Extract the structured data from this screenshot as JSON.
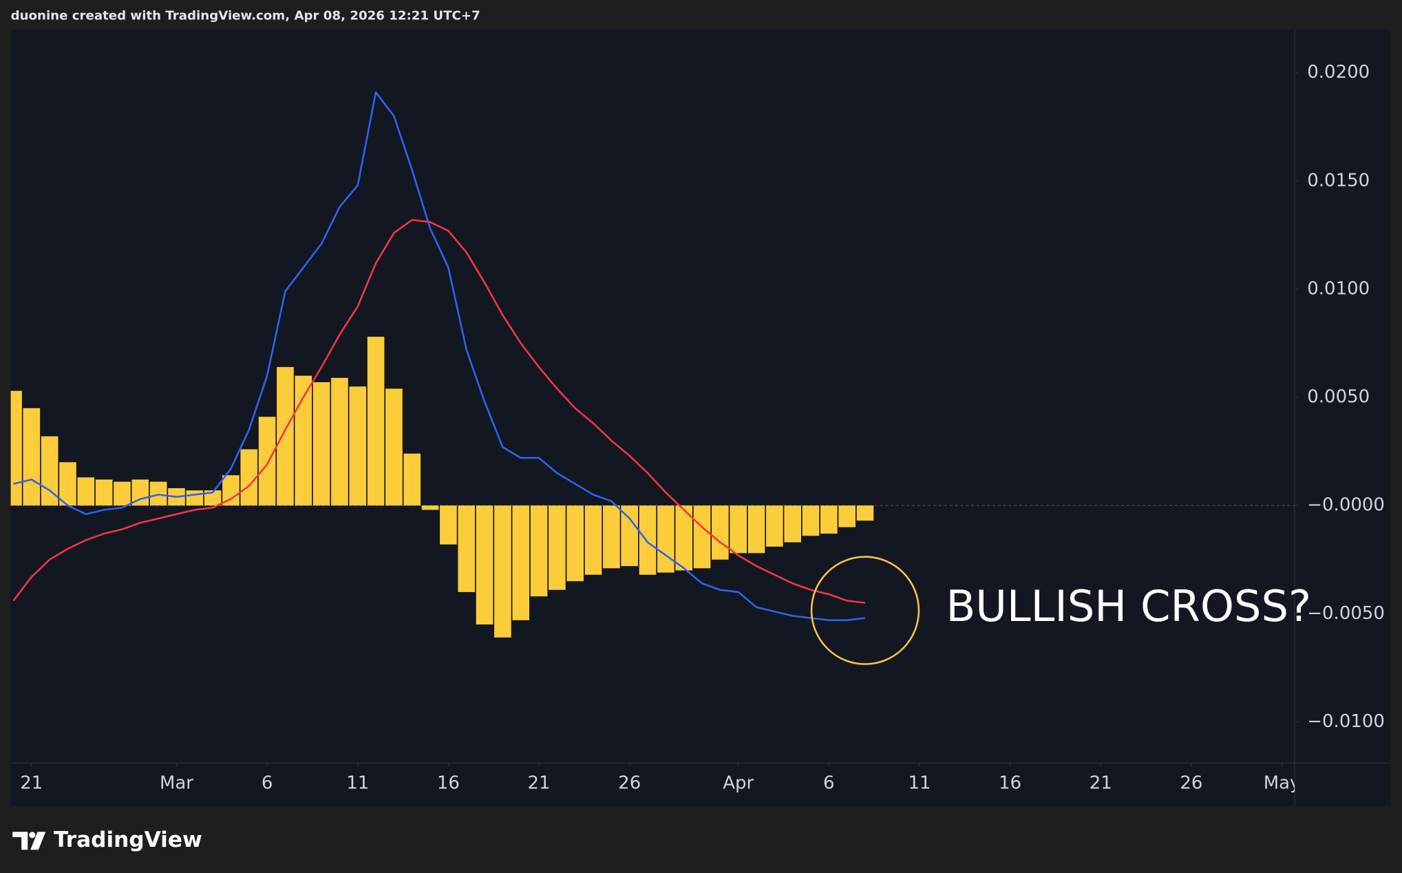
{
  "header": "duonine created with TradingView.com, Apr 08, 2026 12:21 UTC+7",
  "logo": "TradingView",
  "chart_data": {
    "type": "macd",
    "annotation": "BULLISH CROSS?",
    "grid": false,
    "x": [
      "2026-02-20",
      "2026-02-21",
      "2026-02-22",
      "2026-02-23",
      "2026-02-24",
      "2026-02-25",
      "2026-02-26",
      "2026-02-27",
      "2026-02-28",
      "2026-03-01",
      "2026-03-02",
      "2026-03-03",
      "2026-03-04",
      "2026-03-05",
      "2026-03-06",
      "2026-03-07",
      "2026-03-08",
      "2026-03-09",
      "2026-03-10",
      "2026-03-11",
      "2026-03-12",
      "2026-03-13",
      "2026-03-14",
      "2026-03-15",
      "2026-03-16",
      "2026-03-17",
      "2026-03-18",
      "2026-03-19",
      "2026-03-20",
      "2026-03-21",
      "2026-03-22",
      "2026-03-23",
      "2026-03-24",
      "2026-03-25",
      "2026-03-26",
      "2026-03-27",
      "2026-03-28",
      "2026-03-29",
      "2026-03-30",
      "2026-03-31",
      "2026-04-01",
      "2026-04-02",
      "2026-04-03",
      "2026-04-04",
      "2026-04-05",
      "2026-04-06",
      "2026-04-07",
      "2026-04-08"
    ],
    "xlim": [
      "2026-02-20",
      "2026-05-02"
    ],
    "xticks": [
      {
        "value": "2026-02-21",
        "label": "21"
      },
      {
        "value": "2026-03-01",
        "label": "Mar"
      },
      {
        "value": "2026-03-06",
        "label": "6"
      },
      {
        "value": "2026-03-11",
        "label": "11"
      },
      {
        "value": "2026-03-16",
        "label": "16"
      },
      {
        "value": "2026-03-21",
        "label": "21"
      },
      {
        "value": "2026-03-26",
        "label": "26"
      },
      {
        "value": "2026-04-01",
        "label": "Apr"
      },
      {
        "value": "2026-04-06",
        "label": "6"
      },
      {
        "value": "2026-04-11",
        "label": "11"
      },
      {
        "value": "2026-04-16",
        "label": "16"
      },
      {
        "value": "2026-04-21",
        "label": "21"
      },
      {
        "value": "2026-04-26",
        "label": "26"
      },
      {
        "value": "2026-05-01",
        "label": "May"
      }
    ],
    "ylim": [
      -0.0119,
      0.022
    ],
    "yticks": [
      {
        "value": 0.02,
        "label": "0.0200"
      },
      {
        "value": 0.015,
        "label": "0.0150"
      },
      {
        "value": 0.01,
        "label": "0.0100"
      },
      {
        "value": 0.005,
        "label": "0.0050"
      },
      {
        "value": 0,
        "label": "−0.0000"
      },
      {
        "value": -0.005,
        "label": "−0.0050"
      },
      {
        "value": -0.01,
        "label": "−0.0100"
      }
    ],
    "series": [
      {
        "type": "bar",
        "color": "#fccd3a",
        "values": [
          0.0053,
          0.0045,
          0.0032,
          0.002,
          0.0013,
          0.0012,
          0.0011,
          0.0012,
          0.0011,
          0.0008,
          0.0007,
          0.0007,
          0.0014,
          0.0026,
          0.0041,
          0.0064,
          0.006,
          0.0057,
          0.0059,
          0.0055,
          0.0078,
          0.0054,
          0.0024,
          -0.0002,
          -0.0018,
          -0.004,
          -0.0055,
          -0.0061,
          -0.0053,
          -0.0042,
          -0.0039,
          -0.0035,
          -0.0032,
          -0.0029,
          -0.0028,
          -0.0032,
          -0.0031,
          -0.003,
          -0.0029,
          -0.0025,
          -0.0022,
          -0.0022,
          -0.0019,
          -0.0017,
          -0.0014,
          -0.0013,
          -0.001,
          -0.0007
        ]
      },
      {
        "type": "line",
        "color": "#2f62f0",
        "values": [
          0.001,
          0.0012,
          0.0007,
          0.0,
          -0.0004,
          -0.0002,
          -0.0001,
          0.0003,
          0.0005,
          0.0004,
          0.0005,
          0.0006,
          0.0017,
          0.0035,
          0.006,
          0.0099,
          0.011,
          0.0121,
          0.0138,
          0.0148,
          0.0191,
          0.018,
          0.0155,
          0.0128,
          0.011,
          0.0072,
          0.0048,
          0.0027,
          0.0022,
          0.0022,
          0.0015,
          0.001,
          0.0005,
          0.0002,
          -0.0006,
          -0.0017,
          -0.0023,
          -0.0029,
          -0.0036,
          -0.0039,
          -0.004,
          -0.0047,
          -0.0049,
          -0.0051,
          -0.0052,
          -0.0053,
          -0.0053,
          -0.0052
        ]
      },
      {
        "type": "line",
        "color": "#f23645",
        "values": [
          -0.0044,
          -0.0033,
          -0.0025,
          -0.002,
          -0.0016,
          -0.0013,
          -0.0011,
          -0.0008,
          -0.0006,
          -0.0004,
          -0.0002,
          -0.0001,
          0.0003,
          0.0009,
          0.0019,
          0.0035,
          0.005,
          0.0064,
          0.0079,
          0.0092,
          0.0112,
          0.0126,
          0.0132,
          0.0131,
          0.0127,
          0.0117,
          0.0103,
          0.0088,
          0.0075,
          0.0064,
          0.0054,
          0.0045,
          0.0038,
          0.003,
          0.0023,
          0.0015,
          0.0006,
          -0.0002,
          -0.001,
          -0.0017,
          -0.0023,
          -0.0028,
          -0.0032,
          -0.0036,
          -0.0039,
          -0.0041,
          -0.0044,
          -0.0045
        ]
      }
    ]
  }
}
